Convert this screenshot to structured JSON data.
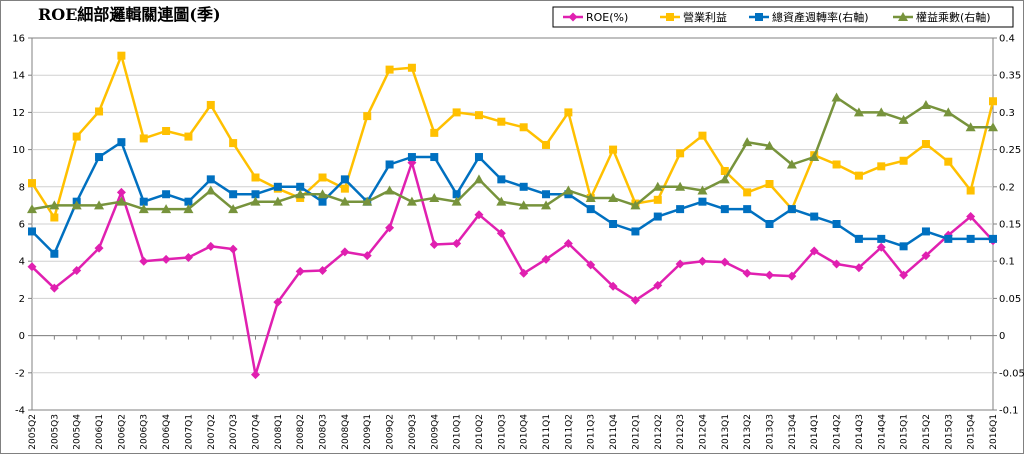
{
  "chart_data": {
    "type": "line",
    "title": "ROE細部邏輯關連圖(季)",
    "categories": [
      "2005Q2",
      "2005Q3",
      "2005Q4",
      "2006Q1",
      "2006Q2",
      "2006Q3",
      "2006Q4",
      "2007Q1",
      "2007Q2",
      "2007Q3",
      "2007Q4",
      "2008Q1",
      "2008Q2",
      "2008Q3",
      "2008Q4",
      "2009Q1",
      "2009Q2",
      "2009Q3",
      "2009Q4",
      "2010Q1",
      "2010Q2",
      "2010Q3",
      "2010Q4",
      "2011Q1",
      "2011Q2",
      "2011Q3",
      "2011Q4",
      "2012Q1",
      "2012Q2",
      "2012Q3",
      "2012Q4",
      "2013Q1",
      "2013Q2",
      "2013Q3",
      "2013Q4",
      "2014Q1",
      "2014Q2",
      "2014Q3",
      "2014Q4",
      "2015Q1",
      "2015Q2",
      "2015Q3",
      "2015Q4",
      "2016Q1"
    ],
    "y_left": {
      "min": -4,
      "max": 16,
      "ticks": [
        "-4",
        "-2",
        "0",
        "2",
        "4",
        "6",
        "8",
        "10",
        "12",
        "14",
        "16"
      ]
    },
    "y_right": {
      "min": -0.1,
      "max": 0.4,
      "ticks": [
        "-0.1",
        "-0.05",
        "0",
        "0.05",
        "0.1",
        "0.15",
        "0.2",
        "0.25",
        "0.3",
        "0.35",
        "0.4"
      ]
    },
    "legend_position": "top-right",
    "series": [
      {
        "name": "ROE(%)",
        "axis": "left",
        "color": "#e020b0",
        "marker": "diamond",
        "values": [
          3.7,
          2.55,
          3.5,
          4.7,
          7.7,
          4.0,
          4.1,
          4.2,
          4.8,
          4.65,
          -2.1,
          1.8,
          3.45,
          3.5,
          4.5,
          4.3,
          5.8,
          9.3,
          4.9,
          4.95,
          6.5,
          5.5,
          3.35,
          4.1,
          4.95,
          3.8,
          2.65,
          1.9,
          2.7,
          3.85,
          4.0,
          3.95,
          3.35,
          3.25,
          3.2,
          4.55,
          3.85,
          3.65,
          4.75,
          3.25,
          4.3,
          5.4,
          6.4,
          5.1
        ]
      },
      {
        "name": "營業利益",
        "axis": "left",
        "color": "#ffc000",
        "marker": "square",
        "values": [
          8.2,
          6.35,
          10.7,
          12.05,
          15.05,
          10.6,
          11.0,
          10.7,
          12.4,
          10.35,
          8.5,
          7.9,
          7.4,
          8.5,
          7.9,
          11.8,
          14.3,
          14.4,
          10.9,
          12.0,
          11.85,
          11.5,
          11.2,
          10.25,
          12.0,
          7.4,
          10.0,
          7.1,
          7.3,
          9.8,
          10.75,
          8.85,
          7.7,
          8.15,
          6.8,
          9.7,
          9.2,
          8.6,
          9.1,
          9.4,
          10.3,
          9.35,
          7.8,
          12.6
        ]
      },
      {
        "name": "總資產週轉率(右軸)",
        "axis": "right",
        "color": "#0070c0",
        "marker": "square",
        "values": [
          0.14,
          0.11,
          0.18,
          0.24,
          0.26,
          0.18,
          0.19,
          0.18,
          0.21,
          0.19,
          0.19,
          0.2,
          0.2,
          0.18,
          0.21,
          0.18,
          0.23,
          0.24,
          0.24,
          0.19,
          0.24,
          0.21,
          0.2,
          0.19,
          0.19,
          0.17,
          0.15,
          0.14,
          0.16,
          0.17,
          0.18,
          0.17,
          0.17,
          0.15,
          0.17,
          0.16,
          0.15,
          0.13,
          0.13,
          0.12,
          0.14,
          0.13,
          0.13,
          0.13
        ]
      },
      {
        "name": "權益乘數(右軸)",
        "axis": "right",
        "color": "#77933c",
        "marker": "triangle",
        "values": [
          0.17,
          0.175,
          0.175,
          0.175,
          0.18,
          0.17,
          0.17,
          0.17,
          0.195,
          0.17,
          0.18,
          0.18,
          0.19,
          0.19,
          0.18,
          0.18,
          0.195,
          0.18,
          0.185,
          0.18,
          0.21,
          0.18,
          0.175,
          0.175,
          0.195,
          0.185,
          0.185,
          0.175,
          0.2,
          0.2,
          0.195,
          0.21,
          0.26,
          0.255,
          0.23,
          0.24,
          0.32,
          0.3,
          0.3,
          0.29,
          0.31,
          0.3,
          0.28,
          0.28
        ]
      }
    ]
  }
}
